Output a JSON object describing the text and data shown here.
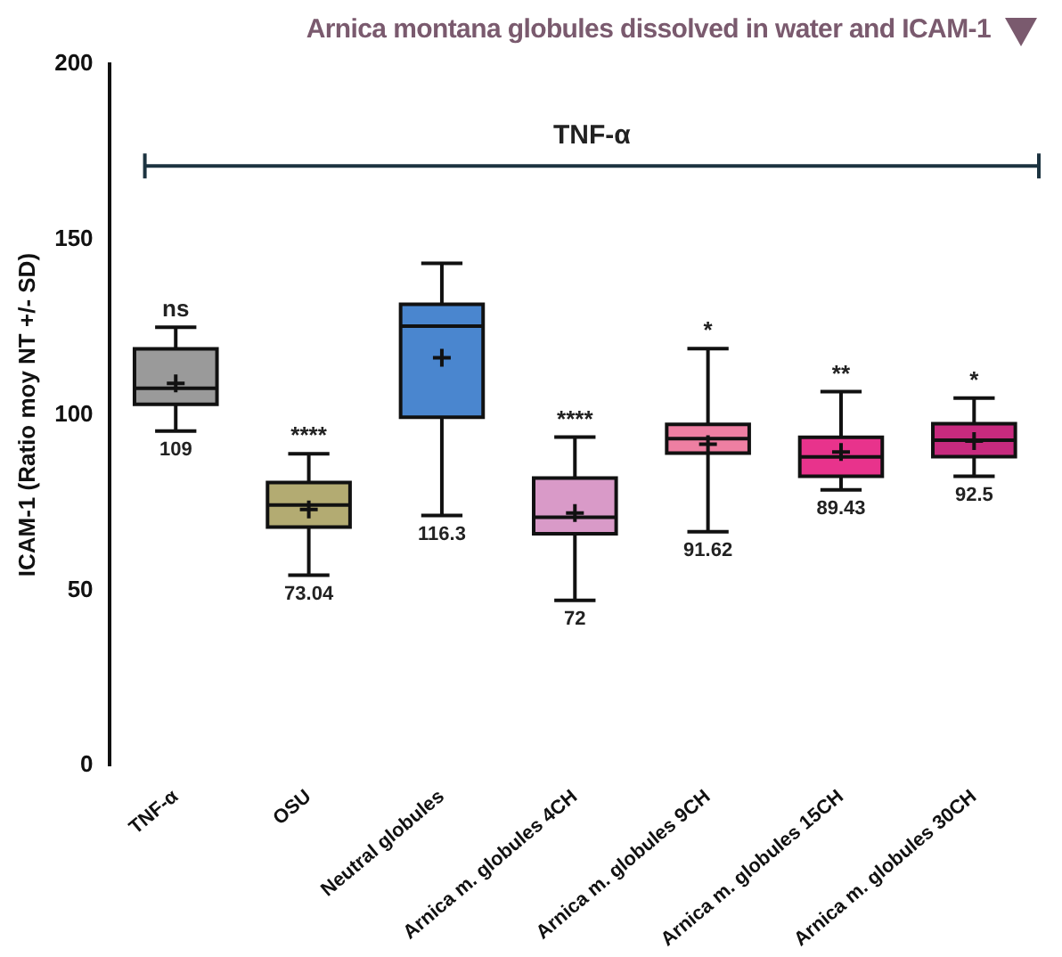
{
  "chart_data": {
    "type": "box",
    "title": "Arnica montana globules dissolved in water and ICAM-1",
    "ylabel": "ICAM-1 (Ratio moy NT +/- SD)",
    "categories": [
      "TNF-α",
      "OSU",
      "Neutral globules",
      "Arnica m. globules 4CH",
      "Arnica m. globules 9CH",
      "Arnica m. globules 15CH",
      "Arnica m. globules 30CH"
    ],
    "boxes": [
      {
        "low": 95.4,
        "q1": 103,
        "median": 107.6,
        "q3": 118.8,
        "high": 125,
        "mean": 109
      },
      {
        "low": 54.3,
        "q1": 68,
        "median": 74.3,
        "q3": 80.7,
        "high": 88.9,
        "mean": 73.04
      },
      {
        "low": 71.3,
        "q1": 99.3,
        "median": 125.3,
        "q3": 131.5,
        "high": 143.2,
        "mean": 116.3
      },
      {
        "low": 47.1,
        "q1": 66.1,
        "median": 70.8,
        "q3": 82,
        "high": 93.7,
        "mean": 72
      },
      {
        "low": 66.7,
        "q1": 89.1,
        "median": 93.2,
        "q3": 97.3,
        "high": 118.9,
        "mean": 91.62
      },
      {
        "low": 78.6,
        "q1": 82.5,
        "median": 88,
        "q3": 93.6,
        "high": 106.6,
        "mean": 89.43
      },
      {
        "low": 82.5,
        "q1": 88.1,
        "median": 92.8,
        "q3": 97.5,
        "high": 104.8,
        "mean": 92.5
      }
    ],
    "colors": [
      "#9a9a9a",
      "#b3ab72",
      "#4a86cf",
      "#d99ac8",
      "#ee7fa2",
      "#e8338c",
      "#c72a7e"
    ],
    "ylim": [
      0,
      200
    ],
    "yticks": [
      0,
      50,
      100,
      150,
      200
    ],
    "grid": false,
    "legend": false,
    "value_labels": [
      "109",
      "73.04",
      "116.3",
      "72",
      "91.62",
      "89.43",
      "92.5"
    ],
    "ref_lines": [
      {
        "axis": "y",
        "value": 171,
        "label": "TNF-α",
        "color": "#1c3340"
      }
    ],
    "annotations": [
      {
        "text": "ns",
        "x": "TNF-α",
        "y": 125
      },
      {
        "text": "****",
        "x": "OSU",
        "y": 88.9
      },
      {
        "text": "****",
        "x": "Arnica m. globules 4CH",
        "y": 93.7
      },
      {
        "text": "*",
        "x": "Arnica m. globules 9CH",
        "y": 118.9
      },
      {
        "text": "**",
        "x": "Arnica m. globules 15CH",
        "y": 106.6
      },
      {
        "text": "*",
        "x": "Arnica m. globules 30CH",
        "y": 104.8
      }
    ]
  }
}
